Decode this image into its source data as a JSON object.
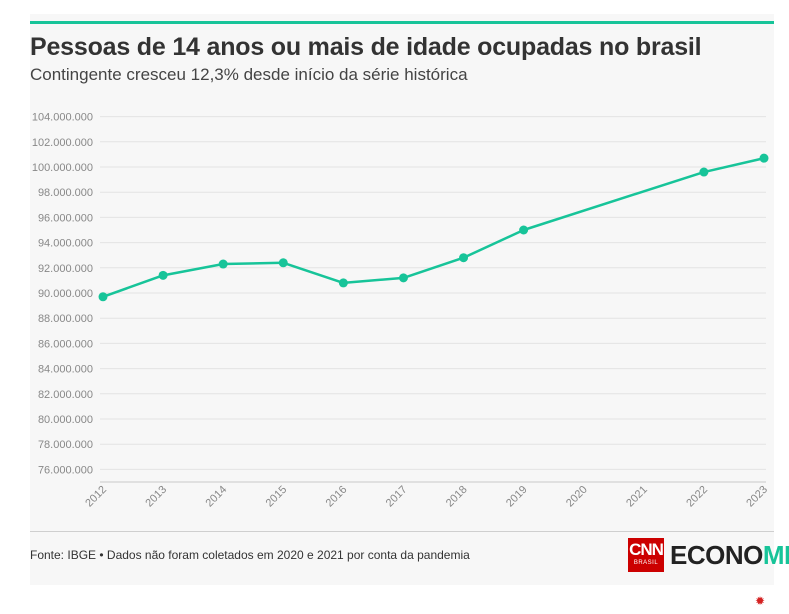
{
  "header": {
    "title": "Pessoas de 14 anos ou mais de idade ocupadas no brasil",
    "subtitle": "Contingente cresceu 12,3% desde início da série histórica"
  },
  "footer": {
    "source": "Fonte: IBGE • Dados não foram coletados em 2020 e 2021 por conta da pandemia",
    "logo_cnn": "CNN",
    "logo_cnn_sub": "BRASIL",
    "logo_economia_a": "ECONO",
    "logo_economia_b": "MIA"
  },
  "colors": {
    "accent": "#17c499",
    "line": "#17c499",
    "brand_red": "#cc0000"
  },
  "chart_data": {
    "type": "line",
    "title": "Pessoas de 14 anos ou mais de idade ocupadas no brasil",
    "subtitle": "Contingente cresceu 12,3% desde início da série histórica",
    "xlabel": "",
    "ylabel": "",
    "categories": [
      "2012",
      "2013",
      "2014",
      "2015",
      "2016",
      "2017",
      "2018",
      "2019",
      "2020",
      "2021",
      "2022",
      "2023"
    ],
    "series": [
      {
        "values": [
          89700000,
          91400000,
          92300000,
          92400000,
          90800000,
          91200000,
          92800000,
          95000000,
          null,
          null,
          99600000,
          100700000
        ]
      }
    ],
    "ylim": [
      75000000,
      105000000
    ],
    "yticks": [
      76000000,
      78000000,
      80000000,
      82000000,
      84000000,
      86000000,
      88000000,
      90000000,
      92000000,
      94000000,
      96000000,
      98000000,
      100000000,
      102000000,
      104000000
    ],
    "ytick_labels": [
      "76.000.000",
      "78.000.000",
      "80.000.000",
      "82.000.000",
      "84.000.000",
      "86.000.000",
      "88.000.000",
      "90.000.000",
      "92.000.000",
      "94.000.000",
      "96.000.000",
      "98.000.000",
      "100.000.000",
      "102.000.000",
      "104.000.000"
    ],
    "grid": true,
    "connect_gaps": true
  }
}
